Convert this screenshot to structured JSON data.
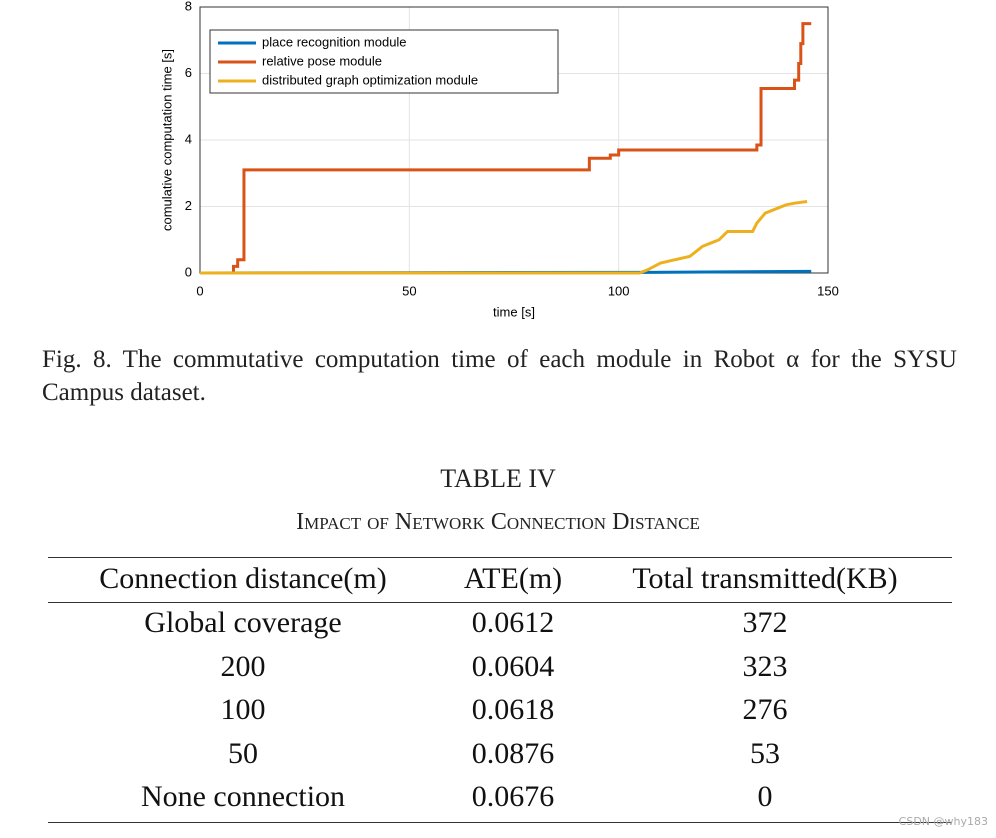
{
  "chart_data": {
    "type": "line",
    "xlabel": "time [s]",
    "ylabel": "comulative computation time [s]",
    "xlim": [
      0,
      150
    ],
    "ylim": [
      0,
      8
    ],
    "xticks": [
      0,
      50,
      100,
      150
    ],
    "yticks": [
      0,
      2,
      4,
      6,
      8
    ],
    "grid": true,
    "legend": "upper left",
    "series": [
      {
        "name": "place recognition module",
        "color": "#0072bd",
        "x": [
          0,
          107,
          146
        ],
        "values": [
          0,
          0.02,
          0.05
        ]
      },
      {
        "name": "relative pose module",
        "color": "#d95319",
        "x": [
          0,
          8,
          8,
          9,
          9,
          10.5,
          10.5,
          93,
          93,
          98,
          98,
          100,
          100,
          133,
          133,
          134,
          134,
          142,
          142,
          143,
          143,
          143.5,
          143.5,
          144,
          144,
          146
        ],
        "values": [
          0,
          0,
          0.2,
          0.2,
          0.4,
          0.4,
          3.1,
          3.1,
          3.45,
          3.45,
          3.55,
          3.55,
          3.7,
          3.7,
          3.85,
          3.85,
          5.55,
          5.55,
          5.8,
          5.8,
          6.3,
          6.3,
          6.9,
          6.9,
          7.5,
          7.5
        ]
      },
      {
        "name": "distributed graph optimization module",
        "color": "#edb120",
        "x": [
          0,
          105,
          107,
          110,
          117,
          120,
          122,
          124,
          126,
          132,
          133,
          135,
          137,
          140,
          142,
          145
        ],
        "values": [
          0,
          0,
          0.1,
          0.3,
          0.5,
          0.8,
          0.9,
          1.0,
          1.25,
          1.25,
          1.5,
          1.8,
          1.9,
          2.05,
          2.1,
          2.15
        ]
      }
    ]
  },
  "caption": "Fig. 8.   The commutative computation time of each module in Robot α for the SYSU Campus dataset.",
  "table": {
    "title": "TABLE IV",
    "subtitle": "Impact of Network Connection Distance",
    "header": [
      "Connection distance(m)",
      "ATE(m)",
      "Total transmitted(KB)"
    ],
    "rows": [
      [
        "Global coverage",
        "0.0612",
        "372"
      ],
      [
        "200",
        "0.0604",
        "323"
      ],
      [
        "100",
        "0.0618",
        "276"
      ],
      [
        "50",
        "0.0876",
        "53"
      ],
      [
        "None connection",
        "0.0676",
        "0"
      ]
    ]
  },
  "watermark": "CSDN @why183"
}
